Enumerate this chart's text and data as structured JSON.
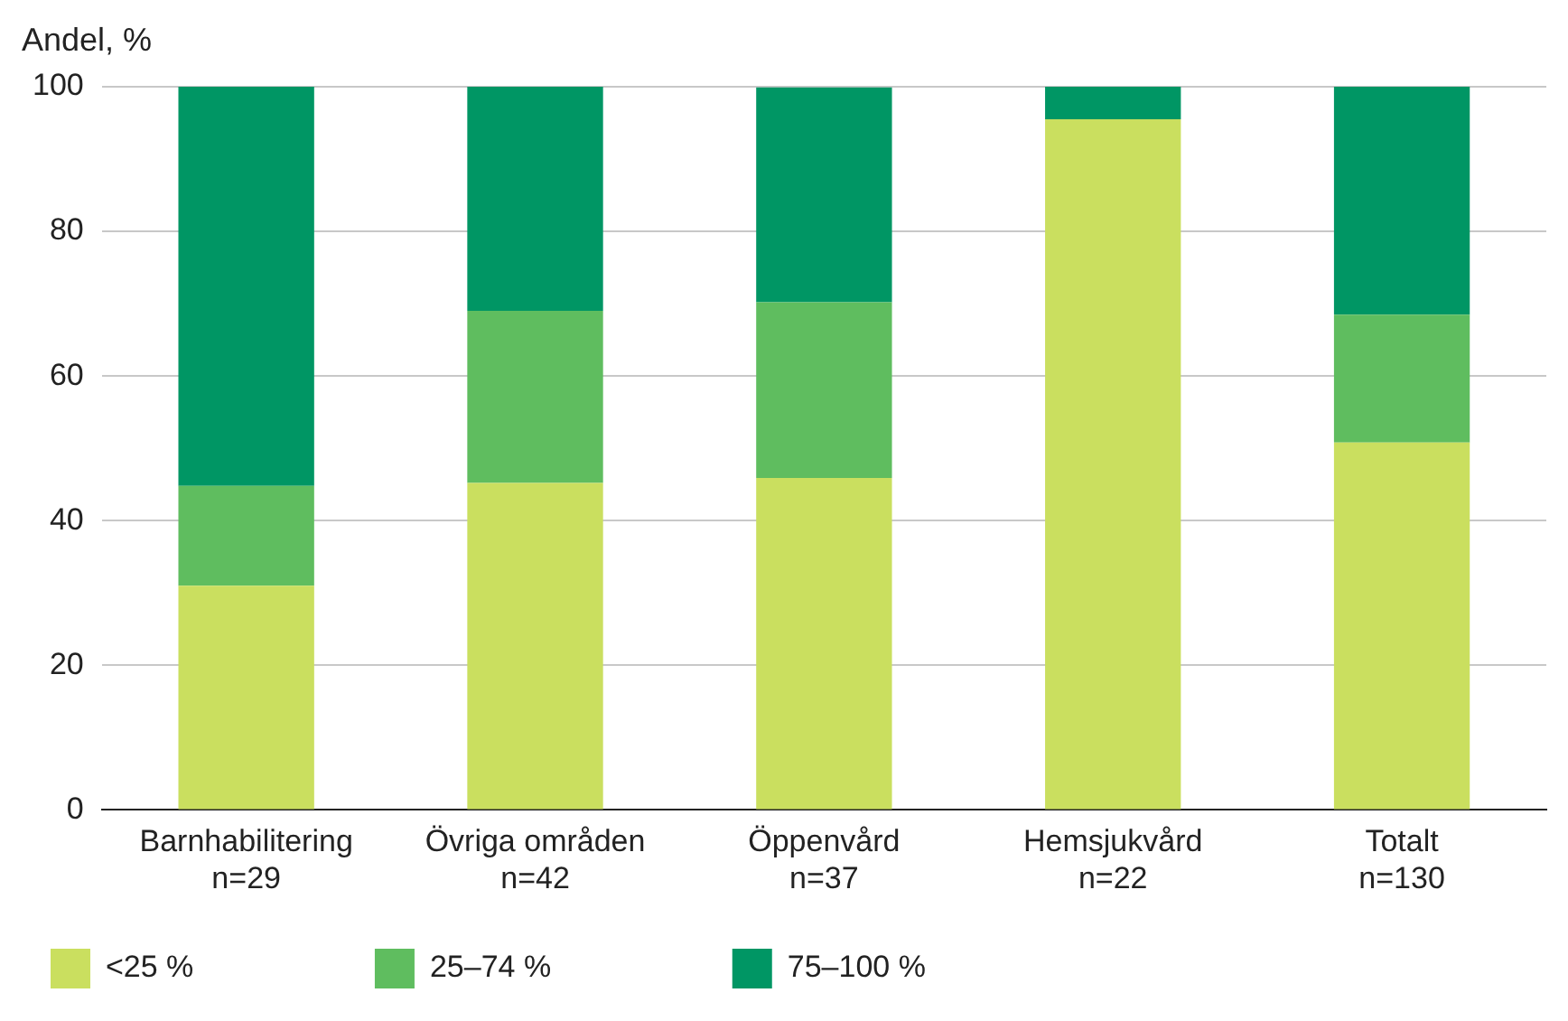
{
  "chart_data": {
    "type": "bar",
    "stacked": true,
    "ylabel": "Andel, %",
    "categories": [
      "Barnhabilitering\nn=29",
      "Övriga områden\nn=42",
      "Öppenvård\nn=37",
      "Hemsjukvård\nn=22",
      "Totalt\nn=130"
    ],
    "series": [
      {
        "name": "<25 %",
        "color": "#cadf5f",
        "values": [
          31.0,
          45.2,
          45.9,
          95.5,
          50.8
        ]
      },
      {
        "name": "25–74 %",
        "color": "#5fbd5f",
        "values": [
          13.8,
          23.8,
          24.3,
          0,
          17.7
        ]
      },
      {
        "name": "75–100 %",
        "color": "#009664",
        "values": [
          55.2,
          31.0,
          29.7,
          4.5,
          31.5
        ]
      }
    ],
    "ylim": [
      0,
      100
    ],
    "yticks": [
      0,
      20,
      40,
      60,
      80,
      100
    ],
    "grid": "y",
    "legend": "bottom left"
  }
}
